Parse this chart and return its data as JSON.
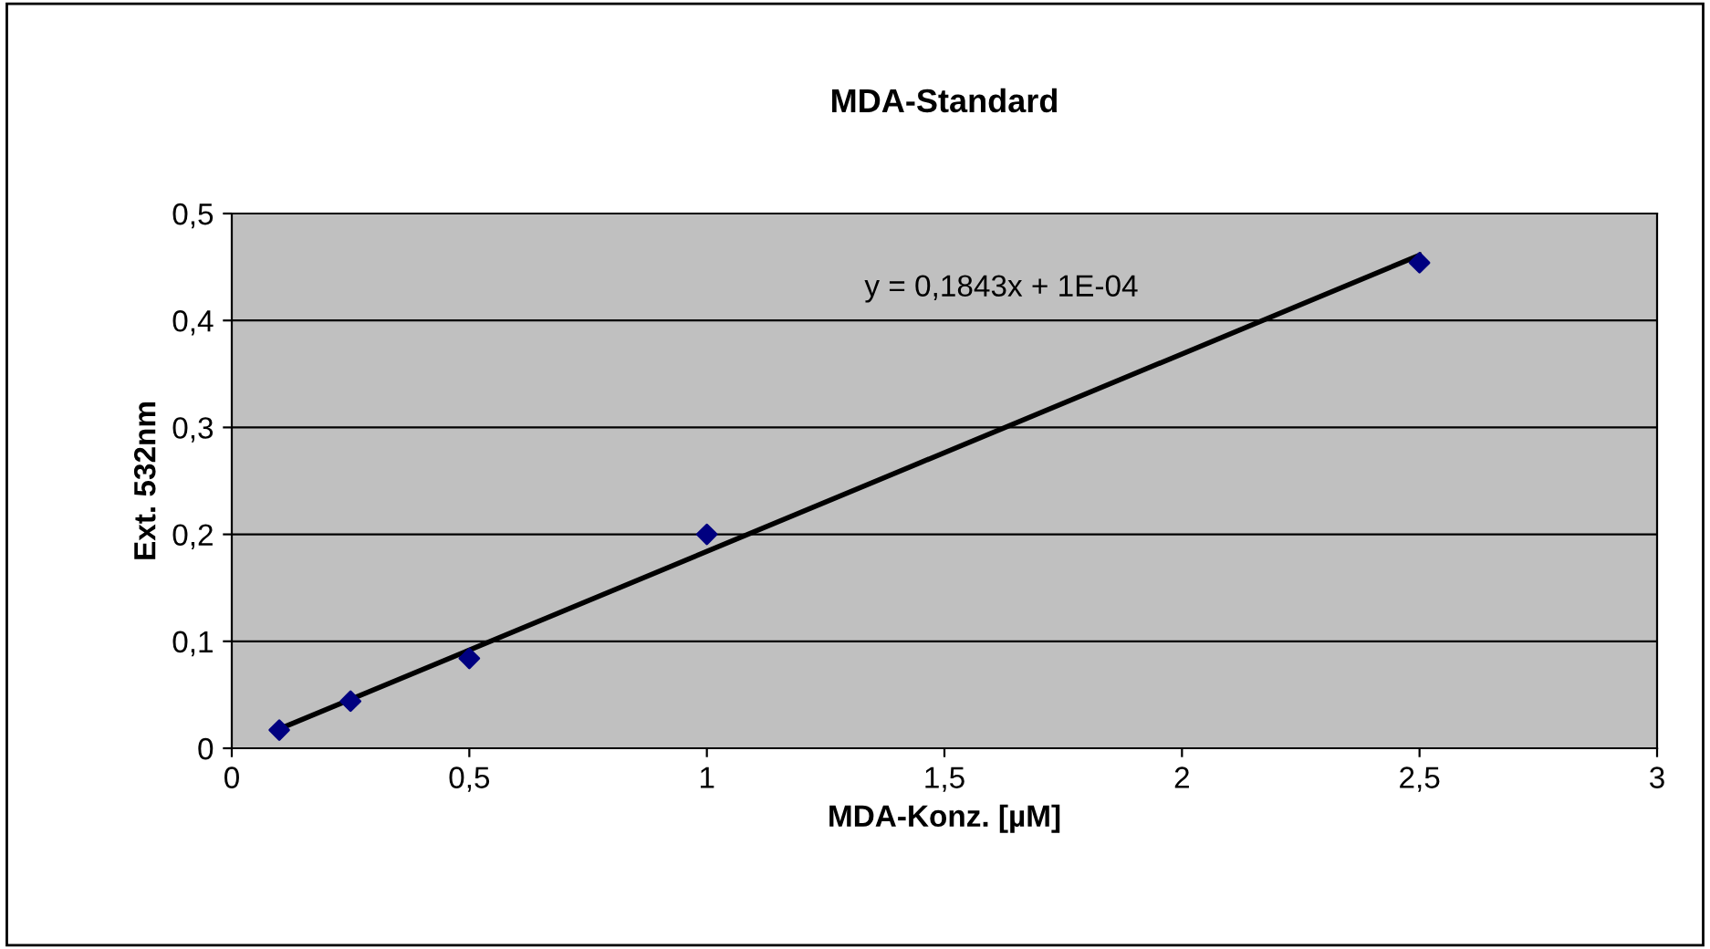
{
  "chart_data": {
    "type": "scatter",
    "title": "MDA-Standard",
    "xlabel": "MDA-Konz. [µM]",
    "ylabel": "Ext. 532nm",
    "x": [
      0.1,
      0.25,
      0.5,
      1,
      2.5
    ],
    "series": [
      {
        "color": "#000080",
        "marker": "diamond",
        "values": [
          0.017,
          0.044,
          0.084,
          0.2,
          0.454
        ]
      },
      {
        "type": "line",
        "color": "#000000",
        "x": [
          0.1,
          2.5
        ],
        "values": [
          0.018,
          0.461
        ],
        "marker": "none",
        "line_style": "solid"
      }
    ],
    "annotations": [
      "y = 0,1843x + 1E-04"
    ],
    "xlim": [
      0,
      3
    ],
    "ylim": [
      0,
      0.5
    ],
    "xticks": [
      0,
      {
        "value": 0.5,
        "label": "0,5"
      },
      1,
      {
        "value": 1.5,
        "label": "1,5"
      },
      2,
      {
        "value": 2.5,
        "label": "2,5"
      },
      3
    ],
    "yticks": [
      0,
      {
        "value": 0.1,
        "label": "0,1"
      },
      {
        "value": 0.2,
        "label": "0,2"
      },
      {
        "value": 0.3,
        "label": "0,3"
      },
      {
        "value": 0.4,
        "label": "0,4"
      },
      {
        "value": 0.5,
        "label": "0,5"
      }
    ],
    "grid": "y",
    "legend": false
  }
}
